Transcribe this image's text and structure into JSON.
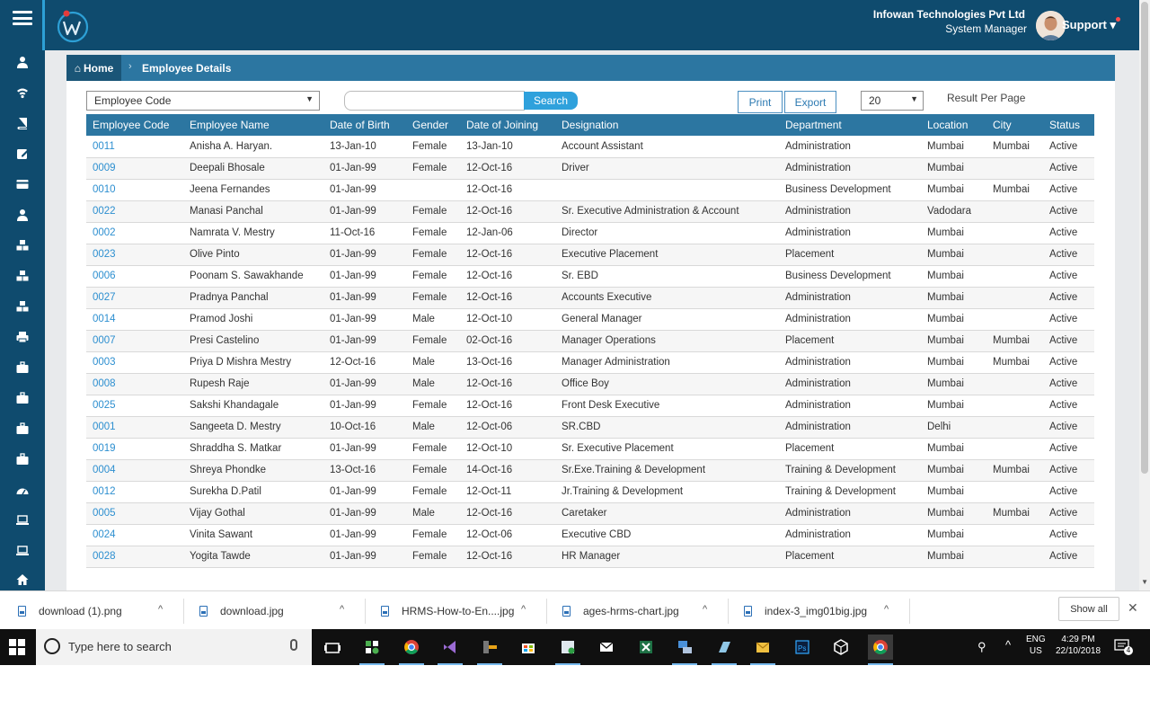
{
  "header": {
    "company": "Infowan Technologies Pvt Ltd",
    "role": "System Manager",
    "user_menu": "Support"
  },
  "breadcrumb": {
    "home": "Home",
    "page": "Employee Details"
  },
  "toolbar": {
    "filter_select": "Employee Code",
    "search_value": "",
    "search_label": "Search",
    "print_label": "Print",
    "export_label": "Export",
    "per_page": "20",
    "per_page_label": "Result Per Page"
  },
  "table": {
    "columns": [
      "Employee Code",
      "Employee Name",
      "Date of Birth",
      "Gender",
      "Date of Joining",
      "Designation",
      "Department",
      "Location",
      "City",
      "Status"
    ],
    "rows": [
      [
        "0011",
        "Anisha A. Haryan.",
        "13-Jan-10",
        "Female",
        "13-Jan-10",
        "Account Assistant",
        "Administration",
        "Mumbai",
        "Mumbai",
        "Active"
      ],
      [
        "0009",
        "Deepali Bhosale",
        "01-Jan-99",
        "Female",
        "12-Oct-16",
        "Driver",
        "Administration",
        "Mumbai",
        "",
        "Active"
      ],
      [
        "0010",
        "Jeena Fernandes",
        "01-Jan-99",
        "",
        "12-Oct-16",
        "",
        "Business Development",
        "Mumbai",
        "Mumbai",
        "Active"
      ],
      [
        "0022",
        "Manasi Panchal",
        "01-Jan-99",
        "Female",
        "12-Oct-16",
        "Sr. Executive Administration & Account",
        "Administration",
        "Vadodara",
        "",
        "Active"
      ],
      [
        "0002",
        "Namrata V. Mestry",
        "11-Oct-16",
        "Female",
        "12-Jan-06",
        "Director",
        "Administration",
        "Mumbai",
        "",
        "Active"
      ],
      [
        "0023",
        "Olive Pinto",
        "01-Jan-99",
        "Female",
        "12-Oct-16",
        "Executive Placement",
        "Placement",
        "Mumbai",
        "",
        "Active"
      ],
      [
        "0006",
        "Poonam S. Sawakhande",
        "01-Jan-99",
        "Female",
        "12-Oct-16",
        "Sr. EBD",
        "Business Development",
        "Mumbai",
        "",
        "Active"
      ],
      [
        "0027",
        "Pradnya Panchal",
        "01-Jan-99",
        "Female",
        "12-Oct-16",
        "Accounts Executive",
        "Administration",
        "Mumbai",
        "",
        "Active"
      ],
      [
        "0014",
        "Pramod Joshi",
        "01-Jan-99",
        "Male",
        "12-Oct-10",
        "General Manager",
        "Administration",
        "Mumbai",
        "",
        "Active"
      ],
      [
        "0007",
        "Presi Castelino",
        "01-Jan-99",
        "Female",
        "02-Oct-16",
        "Manager Operations",
        "Placement",
        "Mumbai",
        "Mumbai",
        "Active"
      ],
      [
        "0003",
        "Priya D Mishra Mestry",
        "12-Oct-16",
        "Male",
        "13-Oct-16",
        "Manager Administration",
        "Administration",
        "Mumbai",
        "Mumbai",
        "Active"
      ],
      [
        "0008",
        "Rupesh Raje",
        "01-Jan-99",
        "Male",
        "12-Oct-16",
        "Office Boy",
        "Administration",
        "Mumbai",
        "",
        "Active"
      ],
      [
        "0025",
        "Sakshi Khandagale",
        "01-Jan-99",
        "Female",
        "12-Oct-16",
        "Front Desk Executive",
        "Administration",
        "Mumbai",
        "",
        "Active"
      ],
      [
        "0001",
        "Sangeeta D. Mestry",
        "10-Oct-16",
        "Male",
        "12-Oct-06",
        "SR.CBD",
        "Administration",
        "Delhi",
        "",
        "Active"
      ],
      [
        "0019",
        "Shraddha S. Matkar",
        "01-Jan-99",
        "Female",
        "12-Oct-10",
        "Sr. Executive Placement",
        "Placement",
        "Mumbai",
        "",
        "Active"
      ],
      [
        "0004",
        "Shreya Phondke",
        "13-Oct-16",
        "Female",
        "14-Oct-16",
        "Sr.Exe.Training & Development",
        "Training & Development",
        "Mumbai",
        "Mumbai",
        "Active"
      ],
      [
        "0012",
        "Surekha D.Patil",
        "01-Jan-99",
        "Female",
        "12-Oct-11",
        "Jr.Training & Development",
        "Training & Development",
        "Mumbai",
        "",
        "Active"
      ],
      [
        "0005",
        "Vijay Gothal",
        "01-Jan-99",
        "Male",
        "12-Oct-16",
        "Caretaker",
        "Administration",
        "Mumbai",
        "Mumbai",
        "Active"
      ],
      [
        "0024",
        "Vinita Sawant",
        "01-Jan-99",
        "Female",
        "12-Oct-06",
        "Executive CBD",
        "Administration",
        "Mumbai",
        "",
        "Active"
      ],
      [
        "0028",
        "Yogita Tawde",
        "01-Jan-99",
        "Female",
        "12-Oct-16",
        "HR Manager",
        "Placement",
        "Mumbai",
        "",
        "Active"
      ]
    ]
  },
  "sidebar_icons": [
    "user-icon",
    "wifi-icon",
    "book-icon",
    "edit-icon",
    "card-icon",
    "user-icon",
    "cubes-icon",
    "cubes-icon",
    "cubes-icon",
    "print-icon",
    "briefcase-icon",
    "briefcase-icon",
    "briefcase-icon",
    "briefcase-icon",
    "dashboard-icon",
    "laptop-icon",
    "laptop-icon",
    "home-icon"
  ],
  "downloads": {
    "items": [
      "download (1).png",
      "download.jpg",
      "HRMS-How-to-En....jpg",
      "ages-hrms-chart.jpg",
      "index-3_img01big.jpg"
    ],
    "show_all": "Show all"
  },
  "taskbar": {
    "search_placeholder": "Type here to search",
    "lang": "ENG",
    "region": "US",
    "time": "4:29 PM",
    "date": "22/10/2018",
    "notification_count": "4"
  },
  "colors": {
    "header_bg": "#0f4b6e",
    "table_header_bg": "#2c76a1",
    "link": "#2d8fd0",
    "search_button": "#2fa1dc"
  }
}
